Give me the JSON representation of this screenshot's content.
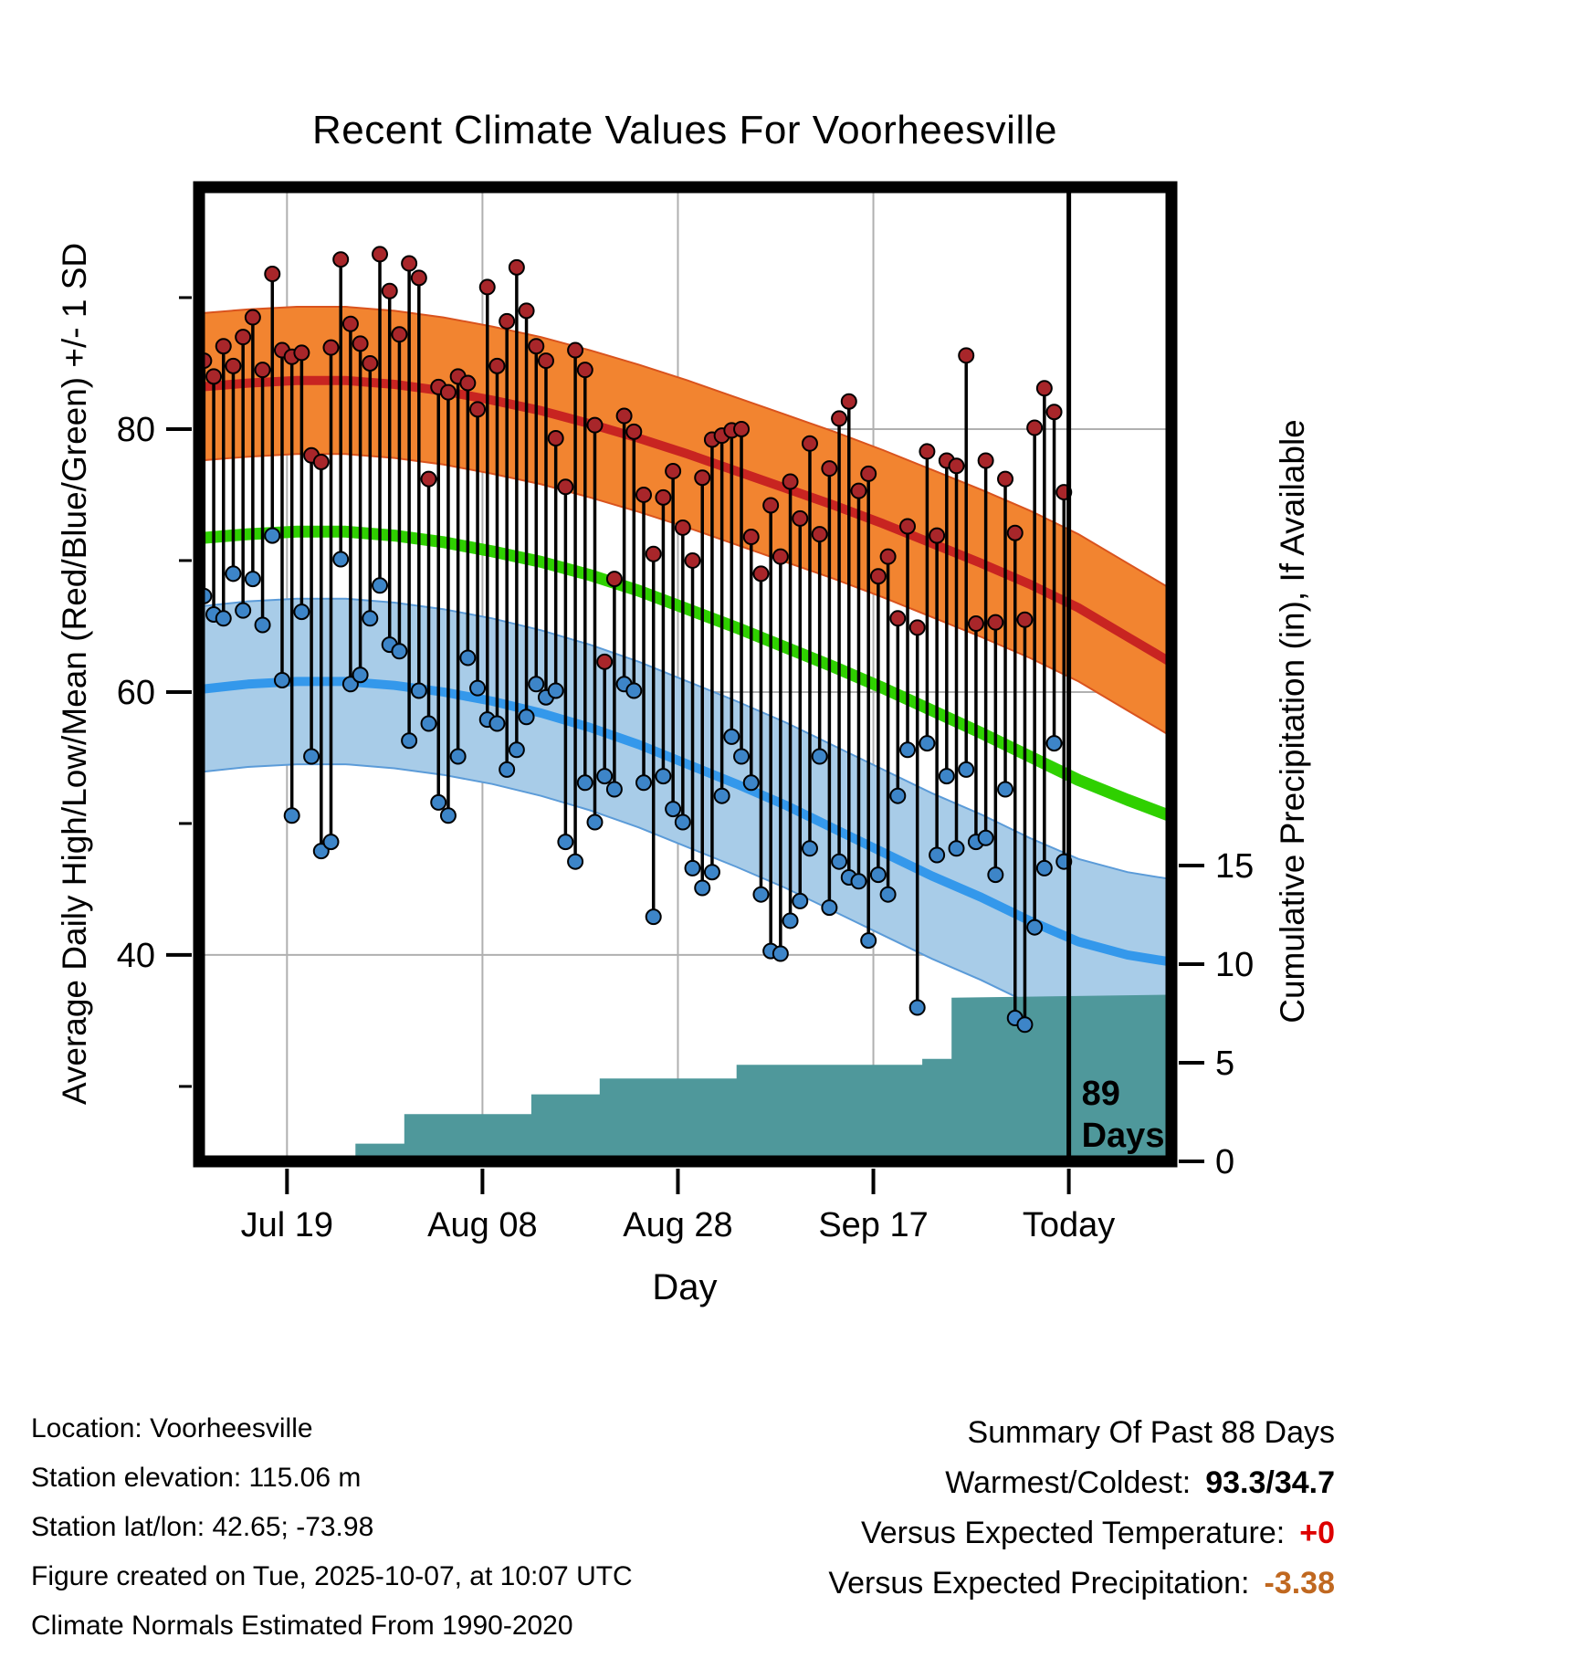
{
  "chart_data": {
    "type": "line",
    "title": "Recent Climate Values For Voorheesville",
    "xlabel": "Day",
    "ylabel_left": "Average Daily High/Low/Mean (Red/Blue/Green) +/- 1 SD",
    "ylabel_right": "Cumulative Precipitation (in), If Available",
    "x_ticks": [
      {
        "label": "Jul 19",
        "day": 9
      },
      {
        "label": "Aug 08",
        "day": 29
      },
      {
        "label": "Aug 28",
        "day": 49
      },
      {
        "label": "Sep 17",
        "day": 69
      },
      {
        "label": "Today",
        "day": 89
      }
    ],
    "x_range_days": [
      0,
      99.5
    ],
    "today_day": 89,
    "yticks_left": [
      40,
      60,
      80
    ],
    "yticks_left_minor": [
      30,
      50,
      70,
      90
    ],
    "yticks_right": [
      0,
      5,
      10,
      15
    ],
    "ylim_left": [
      24.3,
      98.4
    ],
    "ylim_right": [
      0,
      49.4
    ],
    "grid": true,
    "annotation": {
      "line1": "89",
      "line2": "Days"
    },
    "normals": {
      "day": [
        0,
        5,
        10,
        15,
        20,
        25,
        30,
        35,
        40,
        45,
        50,
        55,
        60,
        65,
        70,
        75,
        80,
        85,
        90,
        95,
        100
      ],
      "high_mean": [
        83.2,
        83.5,
        83.7,
        83.7,
        83.4,
        82.9,
        82.2,
        81.4,
        80.4,
        79.3,
        78.1,
        76.8,
        75.5,
        74.2,
        72.8,
        71.3,
        69.8,
        68.2,
        66.4,
        64.2,
        62.0
      ],
      "mean": [
        71.7,
        72.0,
        72.2,
        72.2,
        71.9,
        71.4,
        70.7,
        69.9,
        68.9,
        67.7,
        66.3,
        64.9,
        63.4,
        61.9,
        60.3,
        58.6,
        56.9,
        55.1,
        53.3,
        51.8,
        50.4
      ],
      "low_mean": [
        60.2,
        60.6,
        60.8,
        60.8,
        60.5,
        60.0,
        59.3,
        58.4,
        57.3,
        56.0,
        54.5,
        53.0,
        51.4,
        49.6,
        47.8,
        46.0,
        44.4,
        42.6,
        41.0,
        40.0,
        39.4
      ],
      "high_sd": 5.6,
      "low_sd": 6.3
    },
    "daily": {
      "first_day_offset": 0.5,
      "high": [
        85.2,
        84.0,
        86.3,
        84.8,
        87.0,
        88.5,
        84.5,
        91.8,
        86.0,
        85.5,
        85.8,
        78.0,
        77.5,
        86.2,
        92.9,
        88.0,
        86.5,
        85.0,
        93.3,
        90.5,
        87.2,
        92.6,
        91.5,
        76.2,
        83.2,
        82.8,
        84.0,
        83.5,
        81.5,
        90.8,
        84.8,
        88.2,
        92.3,
        89.0,
        86.3,
        85.2,
        79.3,
        75.6,
        86.0,
        84.5,
        80.3,
        62.3,
        68.6,
        81.0,
        79.8,
        75.0,
        70.5,
        74.8,
        76.8,
        72.5,
        70.0,
        76.3,
        79.2,
        79.5,
        79.9,
        80.0,
        71.8,
        69.0,
        74.2,
        70.3,
        76.0,
        73.2,
        78.9,
        72.0,
        77.0,
        80.8,
        82.1,
        75.3,
        76.6,
        68.8,
        70.3,
        65.6,
        72.6,
        64.9,
        78.3,
        71.9,
        77.6,
        77.2,
        85.6,
        65.2,
        77.6,
        65.3,
        76.2,
        72.1,
        65.5,
        80.1,
        83.1,
        81.3,
        75.2
      ],
      "low": [
        67.3,
        65.9,
        65.6,
        69.0,
        66.2,
        68.6,
        65.1,
        71.9,
        60.9,
        50.6,
        66.1,
        55.1,
        47.9,
        48.6,
        70.1,
        60.6,
        61.3,
        65.6,
        68.1,
        63.6,
        63.1,
        56.3,
        60.1,
        57.6,
        51.6,
        50.6,
        55.1,
        62.6,
        60.3,
        57.9,
        57.6,
        54.1,
        55.6,
        58.1,
        60.6,
        59.6,
        60.1,
        48.6,
        47.1,
        53.1,
        50.1,
        53.6,
        52.6,
        60.6,
        60.1,
        53.1,
        42.9,
        53.6,
        51.1,
        50.1,
        46.6,
        45.1,
        46.3,
        52.1,
        56.6,
        55.1,
        53.1,
        44.6,
        40.3,
        40.1,
        42.6,
        44.1,
        48.1,
        55.1,
        43.6,
        47.1,
        45.9,
        45.6,
        41.1,
        46.1,
        44.6,
        52.1,
        55.6,
        36.0,
        56.1,
        47.6,
        53.6,
        48.1,
        54.1,
        48.6,
        48.9,
        46.1,
        52.6,
        35.2,
        34.7,
        42.1,
        46.6,
        56.1,
        47.1
      ]
    },
    "precip": {
      "day": [
        0,
        16,
        16,
        21,
        21,
        34,
        34,
        41,
        41,
        55,
        55,
        74,
        74,
        77,
        77,
        99.5
      ],
      "cumulative_in": [
        0,
        0,
        0.9,
        0.9,
        2.4,
        2.4,
        3.4,
        3.4,
        4.2,
        4.2,
        4.9,
        4.9,
        5.2,
        5.2,
        8.3,
        8.45
      ]
    },
    "colors": {
      "high_band": "#f28430",
      "high_band_edge": "#d9531e",
      "high_line": "#c82421",
      "mean_line": "#2fd000",
      "low_band": "#a8cce8",
      "low_band_edge": "#5b9bd8",
      "low_line": "#3498eb",
      "precip_fill": "#4f989b",
      "stem": "#000000",
      "high_dot": "#a8262a",
      "low_dot": "#3d85c8",
      "grid": "#b0b0b0"
    }
  },
  "footer": {
    "location": "Location: Voorheesville",
    "elevation": "Station elevation: 115.06 m",
    "latlon": "Station lat/lon: 42.65; -73.98",
    "created": "Figure created on Tue, 2025-10-07, at 10:07 UTC",
    "normals_note": "Climate Normals Estimated From 1990-2020"
  },
  "summary": {
    "title": "Summary Of Past 88 Days",
    "warmest_coldest_label": "Warmest/Coldest:",
    "warmest_coldest_value": "93.3/34.7",
    "vs_temp_label": "Versus Expected Temperature:",
    "vs_temp_value": "+0",
    "vs_precip_label": "Versus Expected Precipitation:",
    "vs_precip_value": "-3.38",
    "temp_value_color": "#dd0000",
    "precip_value_color": "#c06820"
  }
}
